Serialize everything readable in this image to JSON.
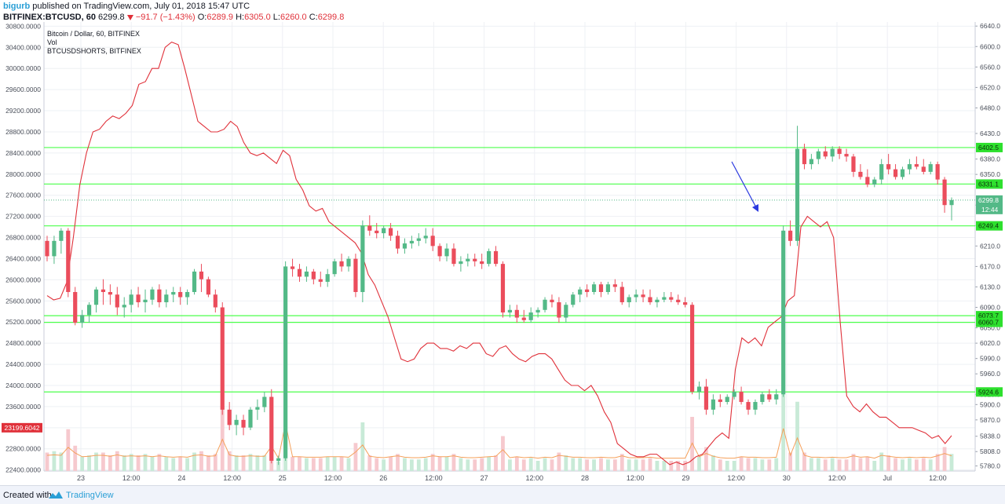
{
  "header": {
    "author": "bigurb",
    "published_text": "published on TradingView.com, July 01, 2018 15:47 UTC",
    "symbol": "BITFINEX:BTCUSD, 60",
    "last": "6299.8",
    "change": "−91.7 (−1.43%)",
    "o_label": "O:",
    "o_value": "6289.9",
    "h_label": "H:",
    "h_value": "6305.0",
    "l_label": "L:",
    "l_value": "6260.0",
    "c_label": "C:",
    "c_value": "6299.8"
  },
  "legend": {
    "main": "Bitcoin / Dollar, 60, BITFINEX",
    "vol": "Vol",
    "shorts": "BTCUSDSHORTS, BITFINEX"
  },
  "footer": {
    "created_with": "Created with",
    "brand": "TradingView"
  },
  "chart_data": {
    "type": "candlestick",
    "colors": {
      "up": "#53b987",
      "down": "#eb4d5c",
      "shorts_line": "#e0313a",
      "level_line": "#4cff4c",
      "drawn_arrow": "#2b3ae0",
      "vol_ma": "#f5a05a"
    },
    "x_ticks": [
      "23",
      "12:00",
      "24",
      "12:00",
      "25",
      "12:00",
      "26",
      "12:00",
      "27",
      "12:00",
      "28",
      "12:00",
      "29",
      "12:00",
      "30",
      "12:00",
      "Jul",
      "12:00"
    ],
    "right_axis": {
      "series": "BTCUSD price",
      "range": [
        5770,
        6648
      ],
      "ticks": [
        "6640.0",
        "6600.0",
        "6560.0",
        "6520.0",
        "6480.0",
        "6430.0",
        "6380.0",
        "6350.0",
        "6290.0",
        "6250.0",
        "6210.0",
        "6170.0",
        "6130.0",
        "6090.0",
        "6050.0",
        "6020.0",
        "5990.0",
        "5960.0",
        "5920.0",
        "5900.0",
        "5870.0",
        "5838.0",
        "5808.0",
        "5780.0"
      ]
    },
    "left_axis": {
      "series": "BTCUSDSHORTS",
      "range": [
        22380,
        30880
      ],
      "ticks": [
        "30800.0000",
        "30400.0000",
        "30000.0000",
        "29600.0000",
        "29200.0000",
        "28800.0000",
        "28400.0000",
        "28000.0000",
        "27600.0000",
        "27200.0000",
        "26800.0000",
        "26400.0000",
        "26000.0000",
        "25600.0000",
        "25200.0000",
        "24800.0000",
        "24400.0000",
        "24000.0000",
        "23600.0000",
        "23200.0000",
        "22800.0000",
        "22400.0000"
      ],
      "current_label": "23199.6042"
    },
    "horizontal_levels": [
      "6402.5",
      "6331.1",
      "6249.4",
      "6073.7",
      "6060.7",
      "5924.6"
    ],
    "current_price_label": "6299.8",
    "countdown_label": "12:44",
    "candles": [
      [
        6220,
        6230,
        6180,
        6190
      ],
      [
        6190,
        6230,
        6175,
        6220
      ],
      [
        6220,
        6245,
        6195,
        6240
      ],
      [
        6240,
        6245,
        6110,
        6120
      ],
      [
        6120,
        6130,
        6055,
        6060
      ],
      [
        6060,
        6085,
        6050,
        6075
      ],
      [
        6075,
        6100,
        6060,
        6095
      ],
      [
        6095,
        6130,
        6080,
        6125
      ],
      [
        6125,
        6145,
        6095,
        6120
      ],
      [
        6120,
        6135,
        6095,
        6115
      ],
      [
        6115,
        6130,
        6075,
        6090
      ],
      [
        6090,
        6110,
        6070,
        6095
      ],
      [
        6095,
        6125,
        6080,
        6115
      ],
      [
        6115,
        6130,
        6090,
        6100
      ],
      [
        6100,
        6125,
        6080,
        6105
      ],
      [
        6105,
        6130,
        6095,
        6125
      ],
      [
        6125,
        6135,
        6090,
        6100
      ],
      [
        6100,
        6125,
        6090,
        6115
      ],
      [
        6115,
        6130,
        6100,
        6120
      ],
      [
        6120,
        6130,
        6095,
        6110
      ],
      [
        6110,
        6125,
        6095,
        6120
      ],
      [
        6120,
        6165,
        6115,
        6160
      ],
      [
        6160,
        6175,
        6120,
        6145
      ],
      [
        6145,
        6150,
        6110,
        6115
      ],
      [
        6115,
        6125,
        6080,
        6090
      ],
      [
        6090,
        6100,
        5880,
        5890
      ],
      [
        5890,
        5905,
        5850,
        5860
      ],
      [
        5860,
        5880,
        5840,
        5870
      ],
      [
        5870,
        5880,
        5840,
        5855
      ],
      [
        5855,
        5895,
        5850,
        5890
      ],
      [
        5890,
        5910,
        5870,
        5895
      ],
      [
        5895,
        5925,
        5885,
        5915
      ],
      [
        5915,
        5930,
        5785,
        5790
      ],
      [
        5790,
        5800,
        5782,
        5795
      ],
      [
        5795,
        6180,
        5790,
        6170
      ],
      [
        6170,
        6185,
        6150,
        6165
      ],
      [
        6165,
        6175,
        6140,
        6150
      ],
      [
        6150,
        6170,
        6140,
        6160
      ],
      [
        6160,
        6165,
        6135,
        6145
      ],
      [
        6145,
        6160,
        6130,
        6140
      ],
      [
        6140,
        6165,
        6130,
        6155
      ],
      [
        6155,
        6185,
        6150,
        6180
      ],
      [
        6180,
        6195,
        6160,
        6170
      ],
      [
        6170,
        6190,
        6160,
        6185
      ],
      [
        6185,
        6195,
        6110,
        6120
      ],
      [
        6120,
        6260,
        6100,
        6250
      ],
      [
        6250,
        6270,
        6230,
        6240
      ],
      [
        6240,
        6255,
        6225,
        6235
      ],
      [
        6235,
        6250,
        6225,
        6245
      ],
      [
        6245,
        6255,
        6220,
        6230
      ],
      [
        6230,
        6240,
        6195,
        6205
      ],
      [
        6205,
        6225,
        6195,
        6215
      ],
      [
        6215,
        6230,
        6205,
        6220
      ],
      [
        6220,
        6235,
        6210,
        6225
      ],
      [
        6225,
        6245,
        6215,
        6230
      ],
      [
        6230,
        6245,
        6200,
        6210
      ],
      [
        6210,
        6215,
        6180,
        6190
      ],
      [
        6190,
        6215,
        6180,
        6205
      ],
      [
        6205,
        6215,
        6170,
        6175
      ],
      [
        6175,
        6190,
        6160,
        6180
      ],
      [
        6180,
        6195,
        6170,
        6185
      ],
      [
        6185,
        6195,
        6170,
        6180
      ],
      [
        6180,
        6195,
        6165,
        6175
      ],
      [
        6175,
        6205,
        6170,
        6200
      ],
      [
        6200,
        6210,
        6170,
        6175
      ],
      [
        6175,
        6180,
        6070,
        6080
      ],
      [
        6080,
        6095,
        6070,
        6085
      ],
      [
        6085,
        6095,
        6060,
        6070
      ],
      [
        6070,
        6085,
        6060,
        6065
      ],
      [
        6065,
        6090,
        6060,
        6080
      ],
      [
        6080,
        6090,
        6070,
        6085
      ],
      [
        6085,
        6110,
        6080,
        6105
      ],
      [
        6105,
        6115,
        6090,
        6100
      ],
      [
        6100,
        6110,
        6060,
        6070
      ],
      [
        6070,
        6100,
        6060,
        6095
      ],
      [
        6095,
        6120,
        6090,
        6115
      ],
      [
        6115,
        6130,
        6100,
        6125
      ],
      [
        6125,
        6135,
        6110,
        6120
      ],
      [
        6120,
        6140,
        6115,
        6135
      ],
      [
        6135,
        6140,
        6110,
        6120
      ],
      [
        6120,
        6140,
        6115,
        6135
      ],
      [
        6135,
        6145,
        6120,
        6130
      ],
      [
        6130,
        6140,
        6095,
        6100
      ],
      [
        6100,
        6115,
        6090,
        6110
      ],
      [
        6110,
        6125,
        6100,
        6115
      ],
      [
        6115,
        6125,
        6100,
        6110
      ],
      [
        6110,
        6125,
        6095,
        6100
      ],
      [
        6100,
        6110,
        6090,
        6105
      ],
      [
        6105,
        6120,
        6100,
        6110
      ],
      [
        6110,
        6120,
        6100,
        6105
      ],
      [
        6105,
        6115,
        6095,
        6100
      ],
      [
        6100,
        6110,
        6090,
        6095
      ],
      [
        6095,
        6100,
        5920,
        5925
      ],
      [
        5925,
        5945,
        5910,
        5935
      ],
      [
        5935,
        5950,
        5880,
        5890
      ],
      [
        5890,
        5920,
        5880,
        5910
      ],
      [
        5910,
        5920,
        5895,
        5905
      ],
      [
        5905,
        5920,
        5900,
        5915
      ],
      [
        5915,
        5930,
        5910,
        5925
      ],
      [
        5925,
        5935,
        5900,
        5905
      ],
      [
        5905,
        5910,
        5880,
        5890
      ],
      [
        5890,
        5910,
        5880,
        5905
      ],
      [
        5905,
        5925,
        5900,
        5920
      ],
      [
        5920,
        5930,
        5905,
        5910
      ],
      [
        5910,
        5930,
        5900,
        5920
      ],
      [
        5920,
        6250,
        5915,
        6240
      ],
      [
        6240,
        6260,
        6210,
        6220
      ],
      [
        6220,
        6445,
        6210,
        6400
      ],
      [
        6400,
        6410,
        6360,
        6370
      ],
      [
        6370,
        6390,
        6360,
        6380
      ],
      [
        6380,
        6400,
        6370,
        6395
      ],
      [
        6395,
        6405,
        6380,
        6385
      ],
      [
        6385,
        6405,
        6375,
        6400
      ],
      [
        6400,
        6405,
        6380,
        6390
      ],
      [
        6390,
        6400,
        6375,
        6385
      ],
      [
        6385,
        6390,
        6345,
        6355
      ],
      [
        6355,
        6370,
        6340,
        6345
      ],
      [
        6345,
        6360,
        6325,
        6330
      ],
      [
        6330,
        6345,
        6325,
        6340
      ],
      [
        6340,
        6380,
        6330,
        6370
      ],
      [
        6370,
        6390,
        6350,
        6360
      ],
      [
        6360,
        6370,
        6340,
        6345
      ],
      [
        6345,
        6365,
        6340,
        6360
      ],
      [
        6360,
        6380,
        6350,
        6370
      ],
      [
        6370,
        6385,
        6360,
        6365
      ],
      [
        6365,
        6380,
        6350,
        6355
      ],
      [
        6355,
        6375,
        6350,
        6370
      ],
      [
        6370,
        6375,
        6330,
        6340
      ],
      [
        6340,
        6345,
        6275,
        6290
      ],
      [
        6290,
        6305,
        6260,
        6299.8
      ]
    ],
    "shorts_series": [
      25700,
      25620,
      25650,
      25950,
      26800,
      27800,
      28400,
      28800,
      28850,
      29000,
      29100,
      29050,
      29150,
      29300,
      29700,
      29750,
      30000,
      30000,
      30400,
      30500,
      30450,
      30000,
      29500,
      29000,
      28900,
      28800,
      28800,
      28850,
      29000,
      28900,
      28600,
      28400,
      28350,
      28400,
      28300,
      28200,
      28450,
      28350,
      27900,
      27700,
      27400,
      27300,
      27350,
      27100,
      27000,
      26900,
      26800,
      26700,
      26500,
      26100,
      25900,
      25600,
      25300,
      24900,
      24500,
      24450,
      24500,
      24700,
      24800,
      24800,
      24700,
      24700,
      24650,
      24750,
      24700,
      24800,
      24800,
      24600,
      24550,
      24700,
      24750,
      24600,
      24500,
      24450,
      24550,
      24600,
      24600,
      24500,
      24300,
      24100,
      24000,
      24000,
      23900,
      24000,
      23800,
      23500,
      23300,
      22900,
      22800,
      22700,
      22650,
      22650,
      22700,
      22700,
      22600,
      22500,
      22550,
      22500,
      22550,
      22650,
      22700,
      22850,
      23000,
      23100,
      23000,
      24300,
      24900,
      24800,
      24900,
      24750,
      25100,
      25200,
      25300,
      25600,
      25700,
      27000,
      27200,
      27100,
      27000,
      27100,
      26800,
      25200,
      23800,
      23600,
      23500,
      23650,
      23500,
      23400,
      23400,
      23300,
      23200,
      23200,
      23200,
      23150,
      23100,
      23000,
      23050,
      22900,
      23050
    ]
  }
}
